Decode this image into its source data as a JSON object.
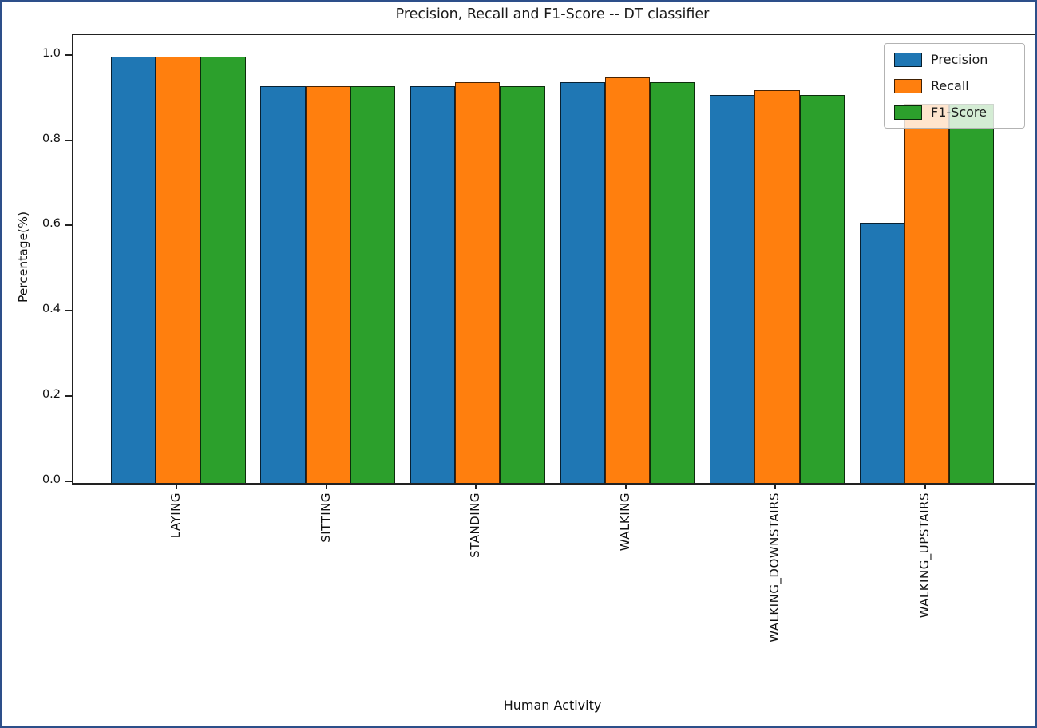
{
  "title": "Precision, Recall and F1-Score -- DT classifier",
  "chart_data": {
    "type": "bar",
    "title": "Precision, Recall and F1-Score -- DT classifier",
    "xlabel": "Human Activity",
    "ylabel": "Percentage(%)",
    "categories": [
      "LAYING",
      "SITTING",
      "STANDING",
      "WALKING",
      "WALKING_DOWNSTAIRS",
      "WALKING_UPSTAIRS"
    ],
    "series": [
      {
        "name": "Precision",
        "color": "#1f77b4",
        "values": [
          1.0,
          0.93,
          0.93,
          0.94,
          0.91,
          0.61
        ]
      },
      {
        "name": "Recall",
        "color": "#ff7f0e",
        "values": [
          1.0,
          0.93,
          0.94,
          0.95,
          0.92,
          0.89
        ]
      },
      {
        "name": "F1-Score",
        "color": "#2ca02c",
        "values": [
          1.0,
          0.93,
          0.93,
          0.94,
          0.91,
          0.89
        ]
      }
    ],
    "yticks": [
      "0.0",
      "0.2",
      "0.4",
      "0.6",
      "0.8",
      "1.0"
    ],
    "ylim": [
      0,
      1.05
    ],
    "bar_width_units": 0.3,
    "legend_position": "upper right",
    "grid": false
  }
}
